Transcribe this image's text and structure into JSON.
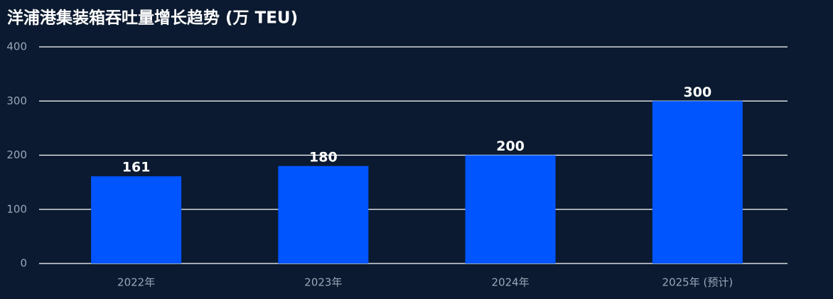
{
  "chart_data": {
    "type": "bar",
    "title": "洋浦港集装箱吞吐量增长趋势 (万 TEU)",
    "categories": [
      "2022年",
      "2023年",
      "2024年",
      "2025年 (预计)"
    ],
    "values": [
      161,
      180,
      200,
      300
    ],
    "color": "#0055ff",
    "ylim": [
      0,
      400
    ],
    "yticks": [
      0,
      100,
      200,
      300,
      400
    ],
    "grid": true
  }
}
